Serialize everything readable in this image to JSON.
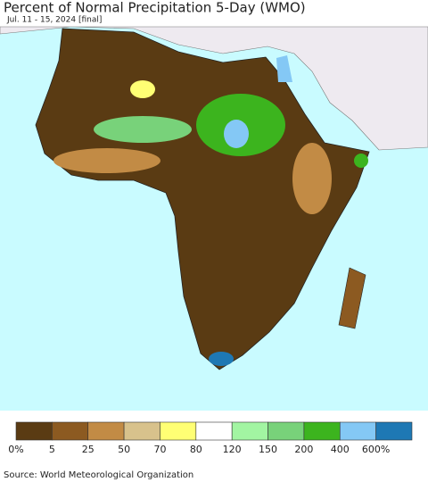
{
  "title": "Percent of Normal Precipitation 5-Day (WMO)",
  "subtitle": "Jul. 11 - 15, 2024 [final]",
  "legend": {
    "colors": [
      "#5a3b13",
      "#8c5a21",
      "#c28b45",
      "#d8c28c",
      "#ffff74",
      "#ffffff",
      "#a2f5a2",
      "#78d27a",
      "#3cb41e",
      "#84c8f5",
      "#1e78b4"
    ],
    "labels": [
      "0%",
      "5",
      "25",
      "50",
      "70",
      "80",
      "120",
      "150",
      "200",
      "400",
      "600%"
    ]
  },
  "source": "Source: World Meteorological Organization"
}
